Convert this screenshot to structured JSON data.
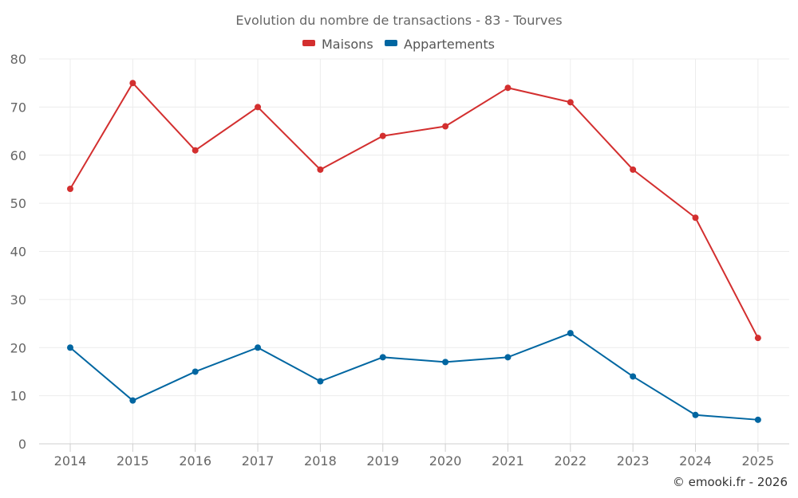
{
  "chart_data": {
    "type": "line",
    "title": "Evolution du nombre de transactions - 83 - Tourves",
    "xlabel": "",
    "ylabel": "",
    "categories": [
      "2014",
      "2015",
      "2016",
      "2017",
      "2018",
      "2019",
      "2020",
      "2021",
      "2022",
      "2023",
      "2024",
      "2025"
    ],
    "ylim": [
      0,
      80
    ],
    "yticks": [
      0,
      10,
      20,
      30,
      40,
      50,
      60,
      70,
      80
    ],
    "grid": true,
    "legend_position": "top-center",
    "series": [
      {
        "name": "Maisons",
        "color": "#d32f2f",
        "values": [
          53,
          75,
          61,
          70,
          57,
          64,
          66,
          74,
          71,
          57,
          47,
          22
        ]
      },
      {
        "name": "Appartements",
        "color": "#0066a1",
        "values": [
          20,
          9,
          15,
          20,
          13,
          18,
          17,
          18,
          23,
          14,
          6,
          5
        ]
      }
    ]
  },
  "credit": "© emooki.fr - 2026"
}
